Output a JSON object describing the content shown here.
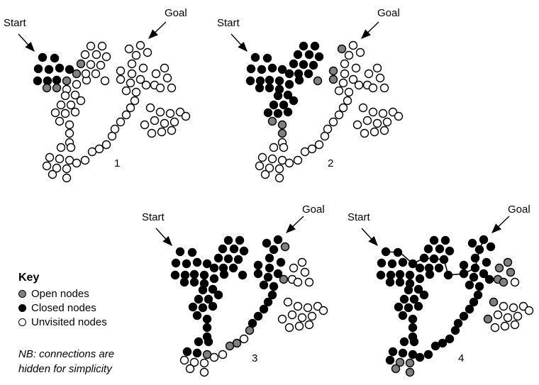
{
  "labels": {
    "start": "Start",
    "goal": "Goal"
  },
  "panels": [
    {
      "number": "1",
      "state": "open nodes ring the start",
      "closed_count": 9,
      "open_count": 5
    },
    {
      "number": "2",
      "state": "search spreading from start",
      "closed_count": 34,
      "open_count": 7
    },
    {
      "number": "3",
      "state": "search reached the goal region",
      "closed_count": 60,
      "open_count": 6
    },
    {
      "number": "4",
      "state": "path found from start to goal",
      "closed_count": 70,
      "open_count": 11
    }
  ],
  "key": {
    "title": "Key",
    "items": [
      {
        "label": "Open nodes",
        "color": "#808080",
        "type": "open"
      },
      {
        "label": "Closed nodes",
        "color": "#000000",
        "type": "closed"
      },
      {
        "label": "Unvisited nodes",
        "color": "#ffffff",
        "type": "unvisited"
      }
    ]
  },
  "note": {
    "line1": "NB: connections are",
    "line2": "hidden for simplicity"
  },
  "colors": {
    "open": "#808080",
    "closed": "#000000",
    "unvisited": "#ffffff",
    "outline": "#000000"
  }
}
